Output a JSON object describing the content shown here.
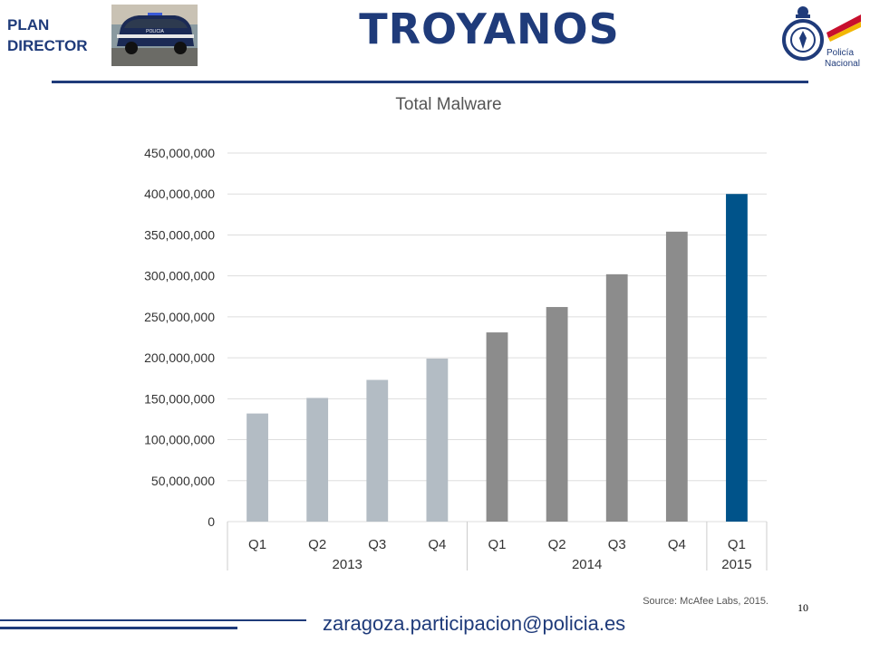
{
  "header": {
    "plan_line1": "PLAN",
    "plan_line2": "DIRECTOR",
    "title": "TROYANOS",
    "logo_text_1": "Policía",
    "logo_text_2": "Nacional",
    "car_marking": "POLICIA"
  },
  "footer": {
    "email": "zaragoza.participacion@policia.es",
    "page_number": "10"
  },
  "colors": {
    "brand_blue": "#1f3b7a",
    "bar_2013": "#b3bcc4",
    "bar_2014": "#8c8c8c",
    "bar_2015": "#00538a"
  },
  "chart_data": {
    "type": "bar",
    "title": "Total Malware",
    "categories": [
      "Q1",
      "Q2",
      "Q3",
      "Q4",
      "Q1",
      "Q2",
      "Q3",
      "Q4",
      "Q1"
    ],
    "groups": [
      {
        "label": "2013",
        "count": 4
      },
      {
        "label": "2014",
        "count": 4
      },
      {
        "label": "2015",
        "count": 1
      }
    ],
    "values": [
      132000000,
      151000000,
      173000000,
      199000000,
      231000000,
      262000000,
      302000000,
      354000000,
      400000000
    ],
    "ylim": [
      0,
      450000000
    ],
    "yticks": [
      0,
      50000000,
      100000000,
      150000000,
      200000000,
      250000000,
      300000000,
      350000000,
      400000000,
      450000000
    ],
    "ytick_labels": [
      "0",
      "50,000,000",
      "100,000,000",
      "150,000,000",
      "200,000,000",
      "250,000,000",
      "300,000,000",
      "350,000,000",
      "400,000,000",
      "450,000,000"
    ],
    "grid": true,
    "source": "Source: McAfee Labs, 2015."
  }
}
